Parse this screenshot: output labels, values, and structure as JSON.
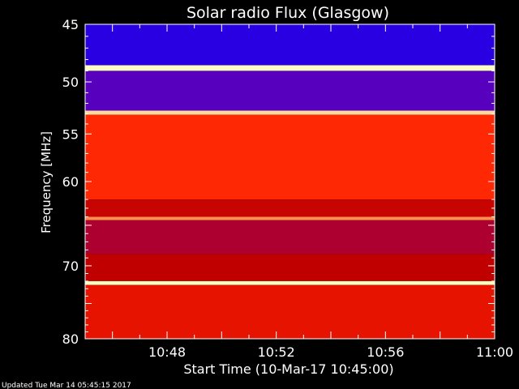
{
  "chart_data": {
    "type": "heatmap",
    "title": "Solar radio Flux (Glasgow)",
    "xlabel": "Start Time (10-Mar-17 10:45:00)",
    "ylabel": "Frequency [MHz]",
    "x_range": [
      "10:45:00",
      "11:00:00"
    ],
    "x_ticks": [
      "10:48",
      "10:52",
      "10:56",
      "11:00"
    ],
    "y_range": [
      45,
      80
    ],
    "y_ticks": [
      45,
      50,
      55,
      60,
      70,
      80
    ],
    "y_major_step": 5,
    "y_scale": "log",
    "colormap": [
      "#000040",
      "#0000ff",
      "#8000a0",
      "#c00000",
      "#ff2000",
      "#ff8040",
      "#ffffc0"
    ],
    "bands": [
      {
        "freq_start": 45,
        "freq_end": 48.5,
        "level": 0.22
      },
      {
        "freq_start": 48.5,
        "freq_end": 49.0,
        "level": 1.0
      },
      {
        "freq_start": 49.0,
        "freq_end": 52.7,
        "level": 0.28
      },
      {
        "freq_start": 52.7,
        "freq_end": 53.1,
        "level": 0.95
      },
      {
        "freq_start": 53.1,
        "freq_end": 62.0,
        "level": 0.68
      },
      {
        "freq_start": 62.0,
        "freq_end": 64.0,
        "level": 0.52
      },
      {
        "freq_start": 64.0,
        "freq_end": 64.4,
        "level": 0.85
      },
      {
        "freq_start": 64.4,
        "freq_end": 68.5,
        "level": 0.45
      },
      {
        "freq_start": 68.5,
        "freq_end": 72.0,
        "level": 0.5
      },
      {
        "freq_start": 72.0,
        "freq_end": 72.5,
        "level": 1.0
      },
      {
        "freq_start": 72.5,
        "freq_end": 80.0,
        "level": 0.6
      }
    ],
    "footer": "Updated Tue Mar 14 05:45:15 2017"
  }
}
